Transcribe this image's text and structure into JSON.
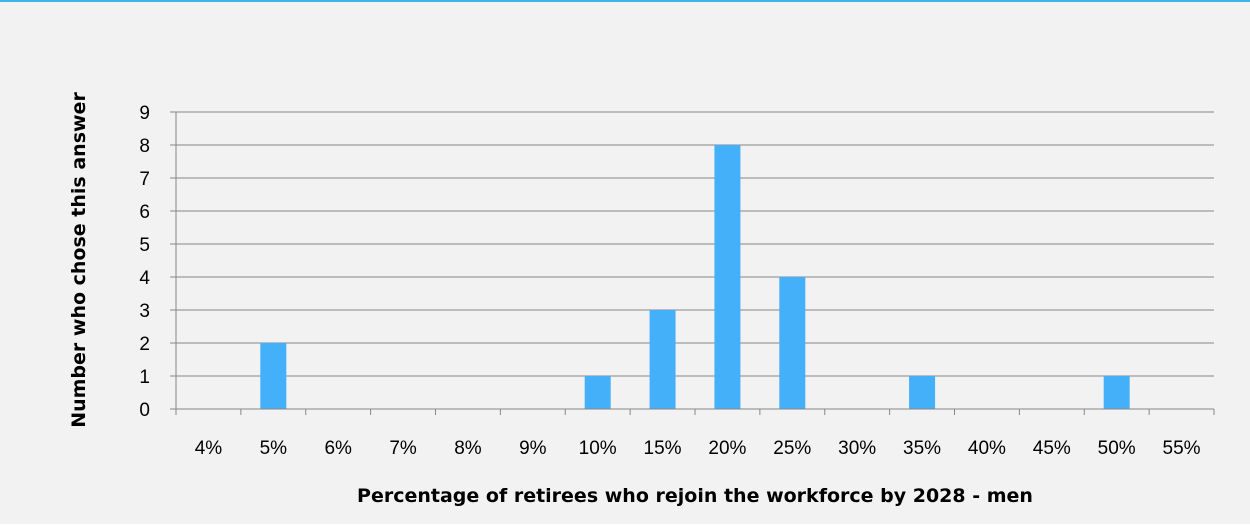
{
  "chart_data": {
    "type": "bar",
    "title": "",
    "xlabel": "Percentage of retirees who rejoin the workforce by 2028 - men",
    "ylabel": "Number who chose this answer",
    "categories": [
      "4%",
      "5%",
      "6%",
      "7%",
      "8%",
      "9%",
      "10%",
      "15%",
      "20%",
      "25%",
      "30%",
      "35%",
      "40%",
      "45%",
      "50%",
      "55%"
    ],
    "values": [
      0,
      2,
      0,
      0,
      0,
      0,
      1,
      3,
      8,
      4,
      0,
      1,
      0,
      0,
      1,
      0
    ],
    "ylim": [
      0,
      9
    ],
    "yticks": [
      "0",
      "1",
      "2",
      "3",
      "4",
      "5",
      "6",
      "7",
      "8",
      "9"
    ],
    "grid": true,
    "legend": "none",
    "colors": {
      "bar": "#45b0fa",
      "grid": "#868686",
      "background": "#f2f2f2",
      "top_border": "#3db6e6"
    }
  }
}
